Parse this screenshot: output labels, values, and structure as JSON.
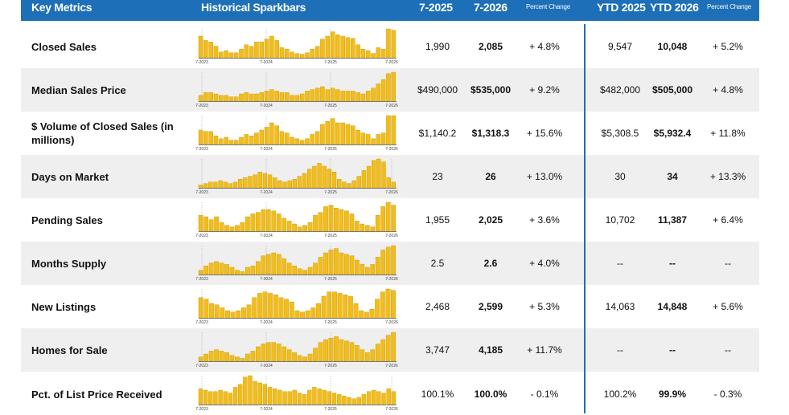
{
  "header": {
    "key_metrics": "Key Metrics",
    "sparkbars": "Historical Sparkbars",
    "col_period1": "7-2025",
    "col_period2": "7-2026",
    "col_pct": "Percent Change",
    "col_ytd1": "YTD 2025",
    "col_ytd2": "YTD 2026",
    "col_ytd_pct": "Percent Change"
  },
  "colors": {
    "header_bg": "#1d6fb8",
    "bar": "#f2bd1b",
    "bar_outline": "#c99700",
    "divider": "#1d6fb8",
    "row_shade": "#efefef"
  },
  "chart_data": {
    "type": "bar",
    "x_tick_labels": [
      "7-2023",
      "7-2024",
      "7-2025",
      "7-2026"
    ],
    "series": [
      {
        "name": "Closed Sales",
        "values": [
          30,
          24,
          22,
          16,
          8,
          10,
          7,
          7,
          12,
          18,
          16,
          22,
          22,
          26,
          30,
          24,
          14,
          12,
          8,
          6,
          5,
          7,
          12,
          16,
          26,
          30,
          36,
          32,
          30,
          28,
          27,
          18,
          12,
          10,
          6,
          14,
          12,
          40,
          38
        ]
      },
      {
        "name": "Median Sales Price",
        "values": [
          8,
          12,
          12,
          10,
          8,
          8,
          6,
          6,
          10,
          12,
          10,
          10,
          12,
          14,
          16,
          14,
          12,
          12,
          8,
          8,
          10,
          14,
          16,
          18,
          20,
          16,
          18,
          16,
          14,
          14,
          14,
          12,
          10,
          14,
          18,
          24,
          30,
          38,
          40
        ]
      },
      {
        "name": "$ Volume of Closed Sales",
        "values": [
          20,
          18,
          18,
          12,
          8,
          10,
          6,
          6,
          10,
          14,
          12,
          16,
          20,
          24,
          30,
          26,
          18,
          16,
          10,
          8,
          6,
          8,
          14,
          18,
          28,
          32,
          36,
          30,
          30,
          28,
          26,
          20,
          16,
          14,
          8,
          14,
          16,
          40,
          40
        ]
      },
      {
        "name": "Days on Market",
        "values": [
          4,
          6,
          8,
          8,
          10,
          8,
          6,
          8,
          12,
          14,
          16,
          18,
          22,
          20,
          18,
          14,
          10,
          8,
          10,
          12,
          16,
          20,
          26,
          30,
          34,
          30,
          26,
          22,
          12,
          8,
          6,
          10,
          16,
          24,
          30,
          38,
          40,
          36,
          14,
          8
        ]
      },
      {
        "name": "Pending Sales",
        "values": [
          22,
          20,
          16,
          20,
          12,
          8,
          6,
          8,
          12,
          20,
          24,
          26,
          30,
          30,
          28,
          24,
          18,
          14,
          10,
          6,
          8,
          12,
          22,
          26,
          34,
          36,
          32,
          30,
          28,
          24,
          14,
          10,
          8,
          6,
          22,
          34,
          40,
          36
        ]
      },
      {
        "name": "Months Supply",
        "values": [
          6,
          12,
          16,
          18,
          16,
          14,
          10,
          6,
          4,
          10,
          12,
          18,
          26,
          28,
          30,
          28,
          22,
          16,
          12,
          8,
          6,
          10,
          16,
          24,
          30,
          34,
          36,
          30,
          28,
          26,
          20,
          14,
          10,
          14,
          24,
          34,
          38,
          40
        ]
      },
      {
        "name": "New Listings",
        "values": [
          28,
          26,
          20,
          18,
          14,
          10,
          8,
          10,
          14,
          18,
          28,
          34,
          36,
          34,
          32,
          28,
          26,
          22,
          10,
          8,
          10,
          14,
          20,
          30,
          36,
          36,
          34,
          32,
          30,
          20,
          10,
          8,
          12,
          26,
          36,
          40,
          38
        ]
      },
      {
        "name": "Homes for Sale",
        "values": [
          6,
          10,
          14,
          16,
          14,
          12,
          8,
          6,
          4,
          10,
          14,
          20,
          24,
          26,
          26,
          24,
          20,
          16,
          12,
          8,
          6,
          10,
          18,
          26,
          30,
          32,
          34,
          30,
          28,
          26,
          22,
          16,
          12,
          16,
          24,
          30,
          36,
          40
        ]
      },
      {
        "name": "Pct. of List Price Received",
        "values": [
          22,
          20,
          18,
          18,
          20,
          18,
          16,
          24,
          28,
          38,
          40,
          32,
          30,
          28,
          24,
          22,
          20,
          18,
          18,
          20,
          16,
          14,
          20,
          24,
          22,
          20,
          18,
          16,
          14,
          12,
          10,
          8,
          10,
          14,
          18,
          20,
          18,
          16,
          22,
          18
        ]
      }
    ]
  },
  "rows": [
    {
      "metric": "Closed Sales",
      "v1": "1,990",
      "v2": "2,085",
      "pct": "+ 4.8%",
      "ytd1": "9,547",
      "ytd2": "10,048",
      "ytd_pct": "+ 5.2%"
    },
    {
      "metric": "Median Sales Price",
      "v1": "$490,000",
      "v2": "$535,000",
      "pct": "+ 9.2%",
      "ytd1": "$482,000",
      "ytd2": "$505,000",
      "ytd_pct": "+ 4.8%"
    },
    {
      "metric": "$ Volume of Closed Sales (in millions)",
      "v1": "$1,140.2",
      "v2": "$1,318.3",
      "pct": "+ 15.6%",
      "ytd1": "$5,308.5",
      "ytd2": "$5,932.4",
      "ytd_pct": "+ 11.8%"
    },
    {
      "metric": "Days on Market",
      "v1": "23",
      "v2": "26",
      "pct": "+ 13.0%",
      "ytd1": "30",
      "ytd2": "34",
      "ytd_pct": "+ 13.3%"
    },
    {
      "metric": "Pending Sales",
      "v1": "1,955",
      "v2": "2,025",
      "pct": "+ 3.6%",
      "ytd1": "10,702",
      "ytd2": "11,387",
      "ytd_pct": "+ 6.4%"
    },
    {
      "metric": "Months Supply",
      "v1": "2.5",
      "v2": "2.6",
      "pct": "+ 4.0%",
      "ytd1": "--",
      "ytd2": "--",
      "ytd_pct": "--"
    },
    {
      "metric": "New Listings",
      "v1": "2,468",
      "v2": "2,599",
      "pct": "+ 5.3%",
      "ytd1": "14,063",
      "ytd2": "14,848",
      "ytd_pct": "+ 5.6%"
    },
    {
      "metric": "Homes for Sale",
      "v1": "3,747",
      "v2": "4,185",
      "pct": "+ 11.7%",
      "ytd1": "--",
      "ytd2": "--",
      "ytd_pct": "--"
    },
    {
      "metric": "Pct. of List Price Received",
      "v1": "100.1%",
      "v2": "100.0%",
      "pct": "- 0.1%",
      "ytd1": "100.2%",
      "ytd2": "99.9%",
      "ytd_pct": "- 0.3%"
    }
  ]
}
